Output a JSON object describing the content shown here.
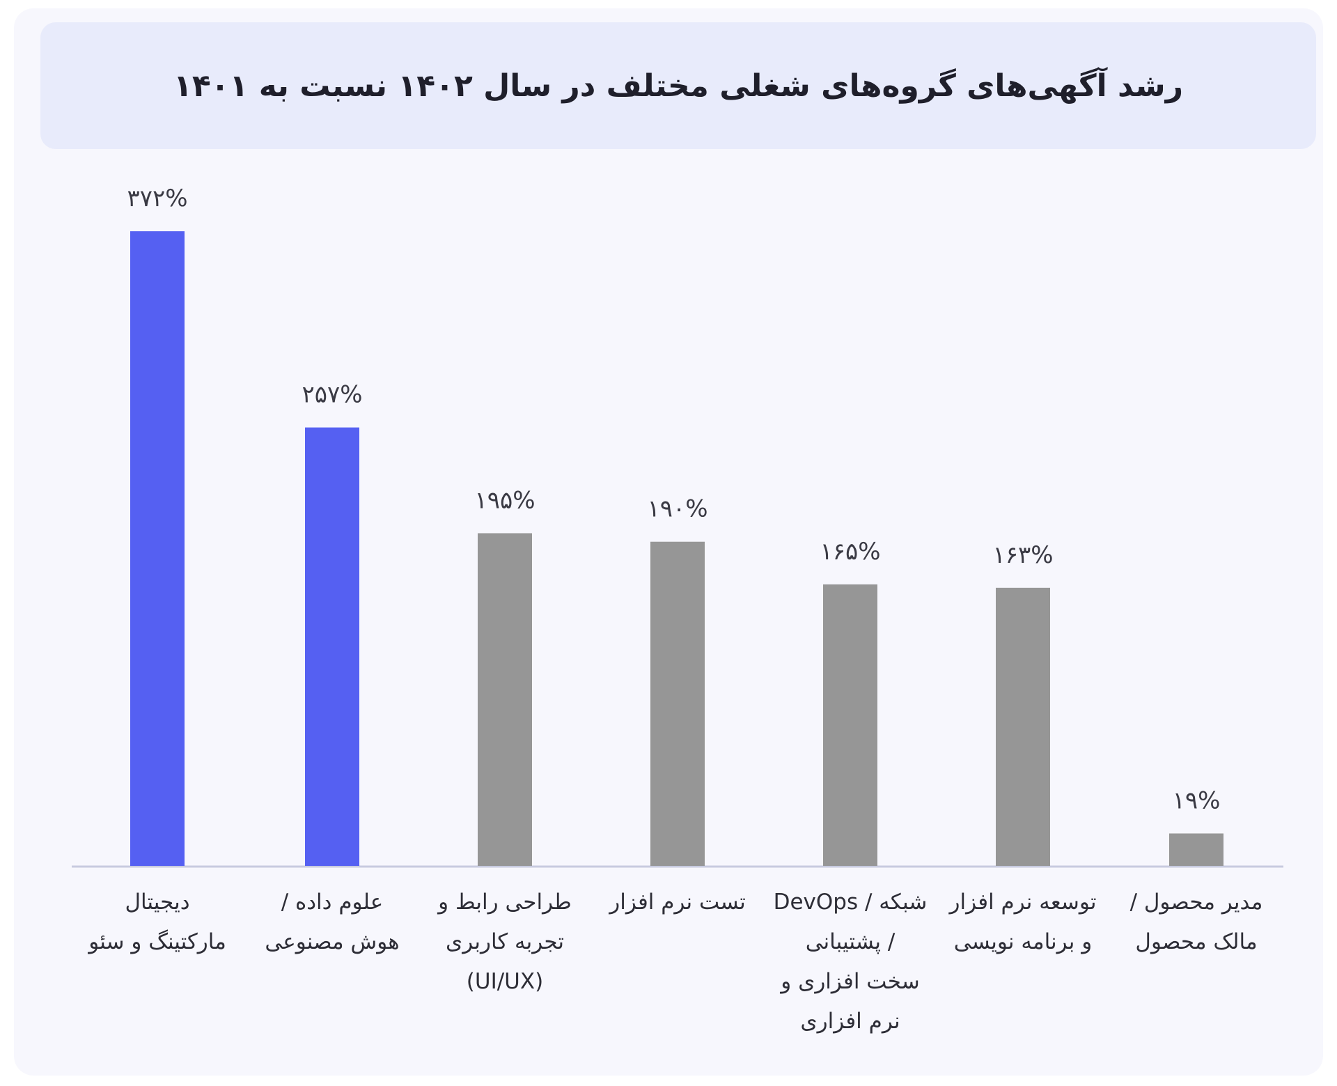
{
  "chart_data": {
    "type": "bar",
    "title": "رشد آگهی‌های گروه‌های شغلی مختلف در سال ۱۴۰۲ نسبت به ۱۴۰۱",
    "categories": [
      [
        "دیجیتال",
        "مارکتینگ و سئو"
      ],
      [
        "علوم داده /",
        "هوش مصنوعی"
      ],
      [
        "طراحی رابط و",
        "تجربه کاربری",
        "(UI/UX)"
      ],
      [
        "تست نرم افزار"
      ],
      [
        "شبکه / DevOps",
        "/ پشتیبانی",
        "سخت افزاری و",
        "نرم افزاری"
      ],
      [
        "توسعه نرم افزار",
        "و برنامه نویسی"
      ],
      [
        "مدیر محصول /",
        "مالک محصول"
      ]
    ],
    "values": [
      372,
      257,
      195,
      190,
      165,
      163,
      19
    ],
    "value_labels": [
      "۳۷۲%",
      "۲۵۷%",
      "۱۹۵%",
      "۱۹۰%",
      "۱۶۵%",
      "۱۶۳%",
      "۱۹%"
    ],
    "colors": [
      "#5560f2",
      "#5560f2",
      "#969696",
      "#969696",
      "#969696",
      "#969696",
      "#969696"
    ],
    "axis_color": "#c8cbe0",
    "ylim": [
      0,
      372
    ],
    "grid": false,
    "legend": "none",
    "xlabel": "",
    "ylabel": ""
  }
}
